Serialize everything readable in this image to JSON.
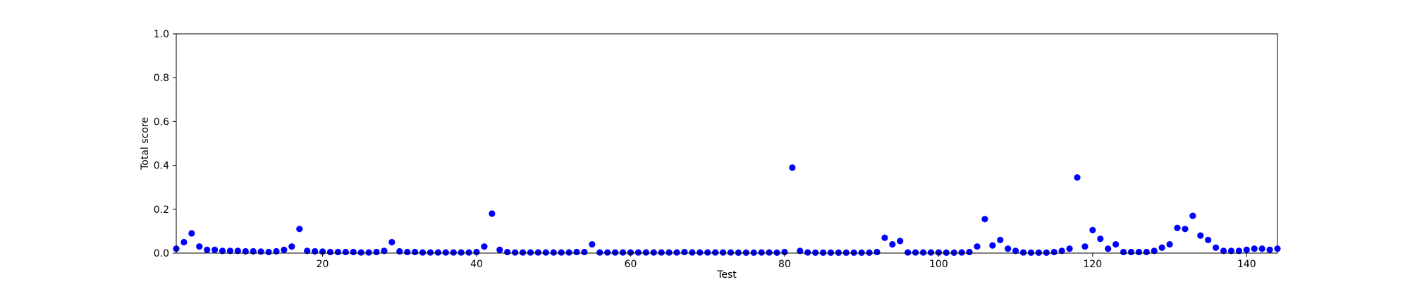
{
  "chart_data": {
    "type": "scatter",
    "title": "",
    "xlabel": "Test",
    "ylabel": "Total score",
    "xlim": [
      1,
      144
    ],
    "ylim": [
      0.0,
      1.0
    ],
    "xticks": [
      20,
      40,
      60,
      80,
      100,
      120,
      140
    ],
    "yticks": [
      0.0,
      0.2,
      0.4,
      0.6,
      0.8,
      1.0
    ],
    "xtick_labels": [
      "20",
      "40",
      "60",
      "80",
      "100",
      "120",
      "140"
    ],
    "ytick_labels": [
      "0.0",
      "0.2",
      "0.4",
      "0.6",
      "0.8",
      "1.0"
    ],
    "grid": false,
    "marker_color": "#0000ff",
    "series": [
      {
        "x": [
          1,
          2,
          3,
          4,
          5,
          6,
          7,
          8,
          9,
          10,
          11,
          12,
          13,
          14,
          15,
          16,
          17,
          18,
          19,
          20,
          21,
          22,
          23,
          24,
          25,
          26,
          27,
          28,
          29,
          30,
          31,
          32,
          33,
          34,
          35,
          36,
          37,
          38,
          39,
          40,
          41,
          42,
          43,
          44,
          45,
          46,
          47,
          48,
          49,
          50,
          51,
          52,
          53,
          54,
          55,
          56,
          57,
          58,
          59,
          60,
          61,
          62,
          63,
          64,
          65,
          66,
          67,
          68,
          69,
          70,
          71,
          72,
          73,
          74,
          75,
          76,
          77,
          78,
          79,
          80,
          81,
          82,
          83,
          84,
          85,
          86,
          87,
          88,
          89,
          90,
          91,
          92,
          93,
          94,
          95,
          96,
          97,
          98,
          99,
          100,
          101,
          102,
          103,
          104,
          105,
          106,
          107,
          108,
          109,
          110,
          111,
          112,
          113,
          114,
          115,
          116,
          117,
          118,
          119,
          120,
          121,
          122,
          123,
          124,
          125,
          126,
          127,
          128,
          129,
          130,
          131,
          132,
          133,
          134,
          135,
          136,
          137,
          138,
          139,
          140,
          141,
          142,
          143,
          144
        ],
        "y": [
          0.02,
          0.05,
          0.09,
          0.03,
          0.015,
          0.015,
          0.01,
          0.01,
          0.01,
          0.008,
          0.008,
          0.007,
          0.005,
          0.008,
          0.015,
          0.03,
          0.11,
          0.01,
          0.008,
          0.007,
          0.005,
          0.005,
          0.005,
          0.005,
          0.003,
          0.003,
          0.005,
          0.01,
          0.05,
          0.008,
          0.005,
          0.005,
          0.003,
          0.003,
          0.003,
          0.003,
          0.003,
          0.003,
          0.003,
          0.005,
          0.03,
          0.18,
          0.015,
          0.005,
          0.003,
          0.003,
          0.003,
          0.003,
          0.003,
          0.003,
          0.003,
          0.003,
          0.005,
          0.005,
          0.04,
          0.003,
          0.003,
          0.003,
          0.003,
          0.003,
          0.003,
          0.003,
          0.003,
          0.003,
          0.003,
          0.003,
          0.005,
          0.003,
          0.003,
          0.003,
          0.003,
          0.003,
          0.003,
          0.002,
          0.002,
          0.002,
          0.003,
          0.003,
          0.002,
          0.005,
          0.39,
          0.01,
          0.003,
          0.002,
          0.002,
          0.002,
          0.002,
          0.002,
          0.002,
          0.002,
          0.002,
          0.005,
          0.07,
          0.04,
          0.055,
          0.003,
          0.003,
          0.003,
          0.003,
          0.003,
          0.002,
          0.002,
          0.003,
          0.005,
          0.03,
          0.155,
          0.035,
          0.06,
          0.02,
          0.01,
          0.003,
          0.002,
          0.002,
          0.002,
          0.005,
          0.01,
          0.02,
          0.345,
          0.03,
          0.105,
          0.065,
          0.02,
          0.04,
          0.005,
          0.005,
          0.005,
          0.005,
          0.01,
          0.025,
          0.04,
          0.115,
          0.11,
          0.17,
          0.08,
          0.06,
          0.025,
          0.01,
          0.01,
          0.01,
          0.015,
          0.02,
          0.02,
          0.015,
          0.02
        ]
      }
    ]
  }
}
